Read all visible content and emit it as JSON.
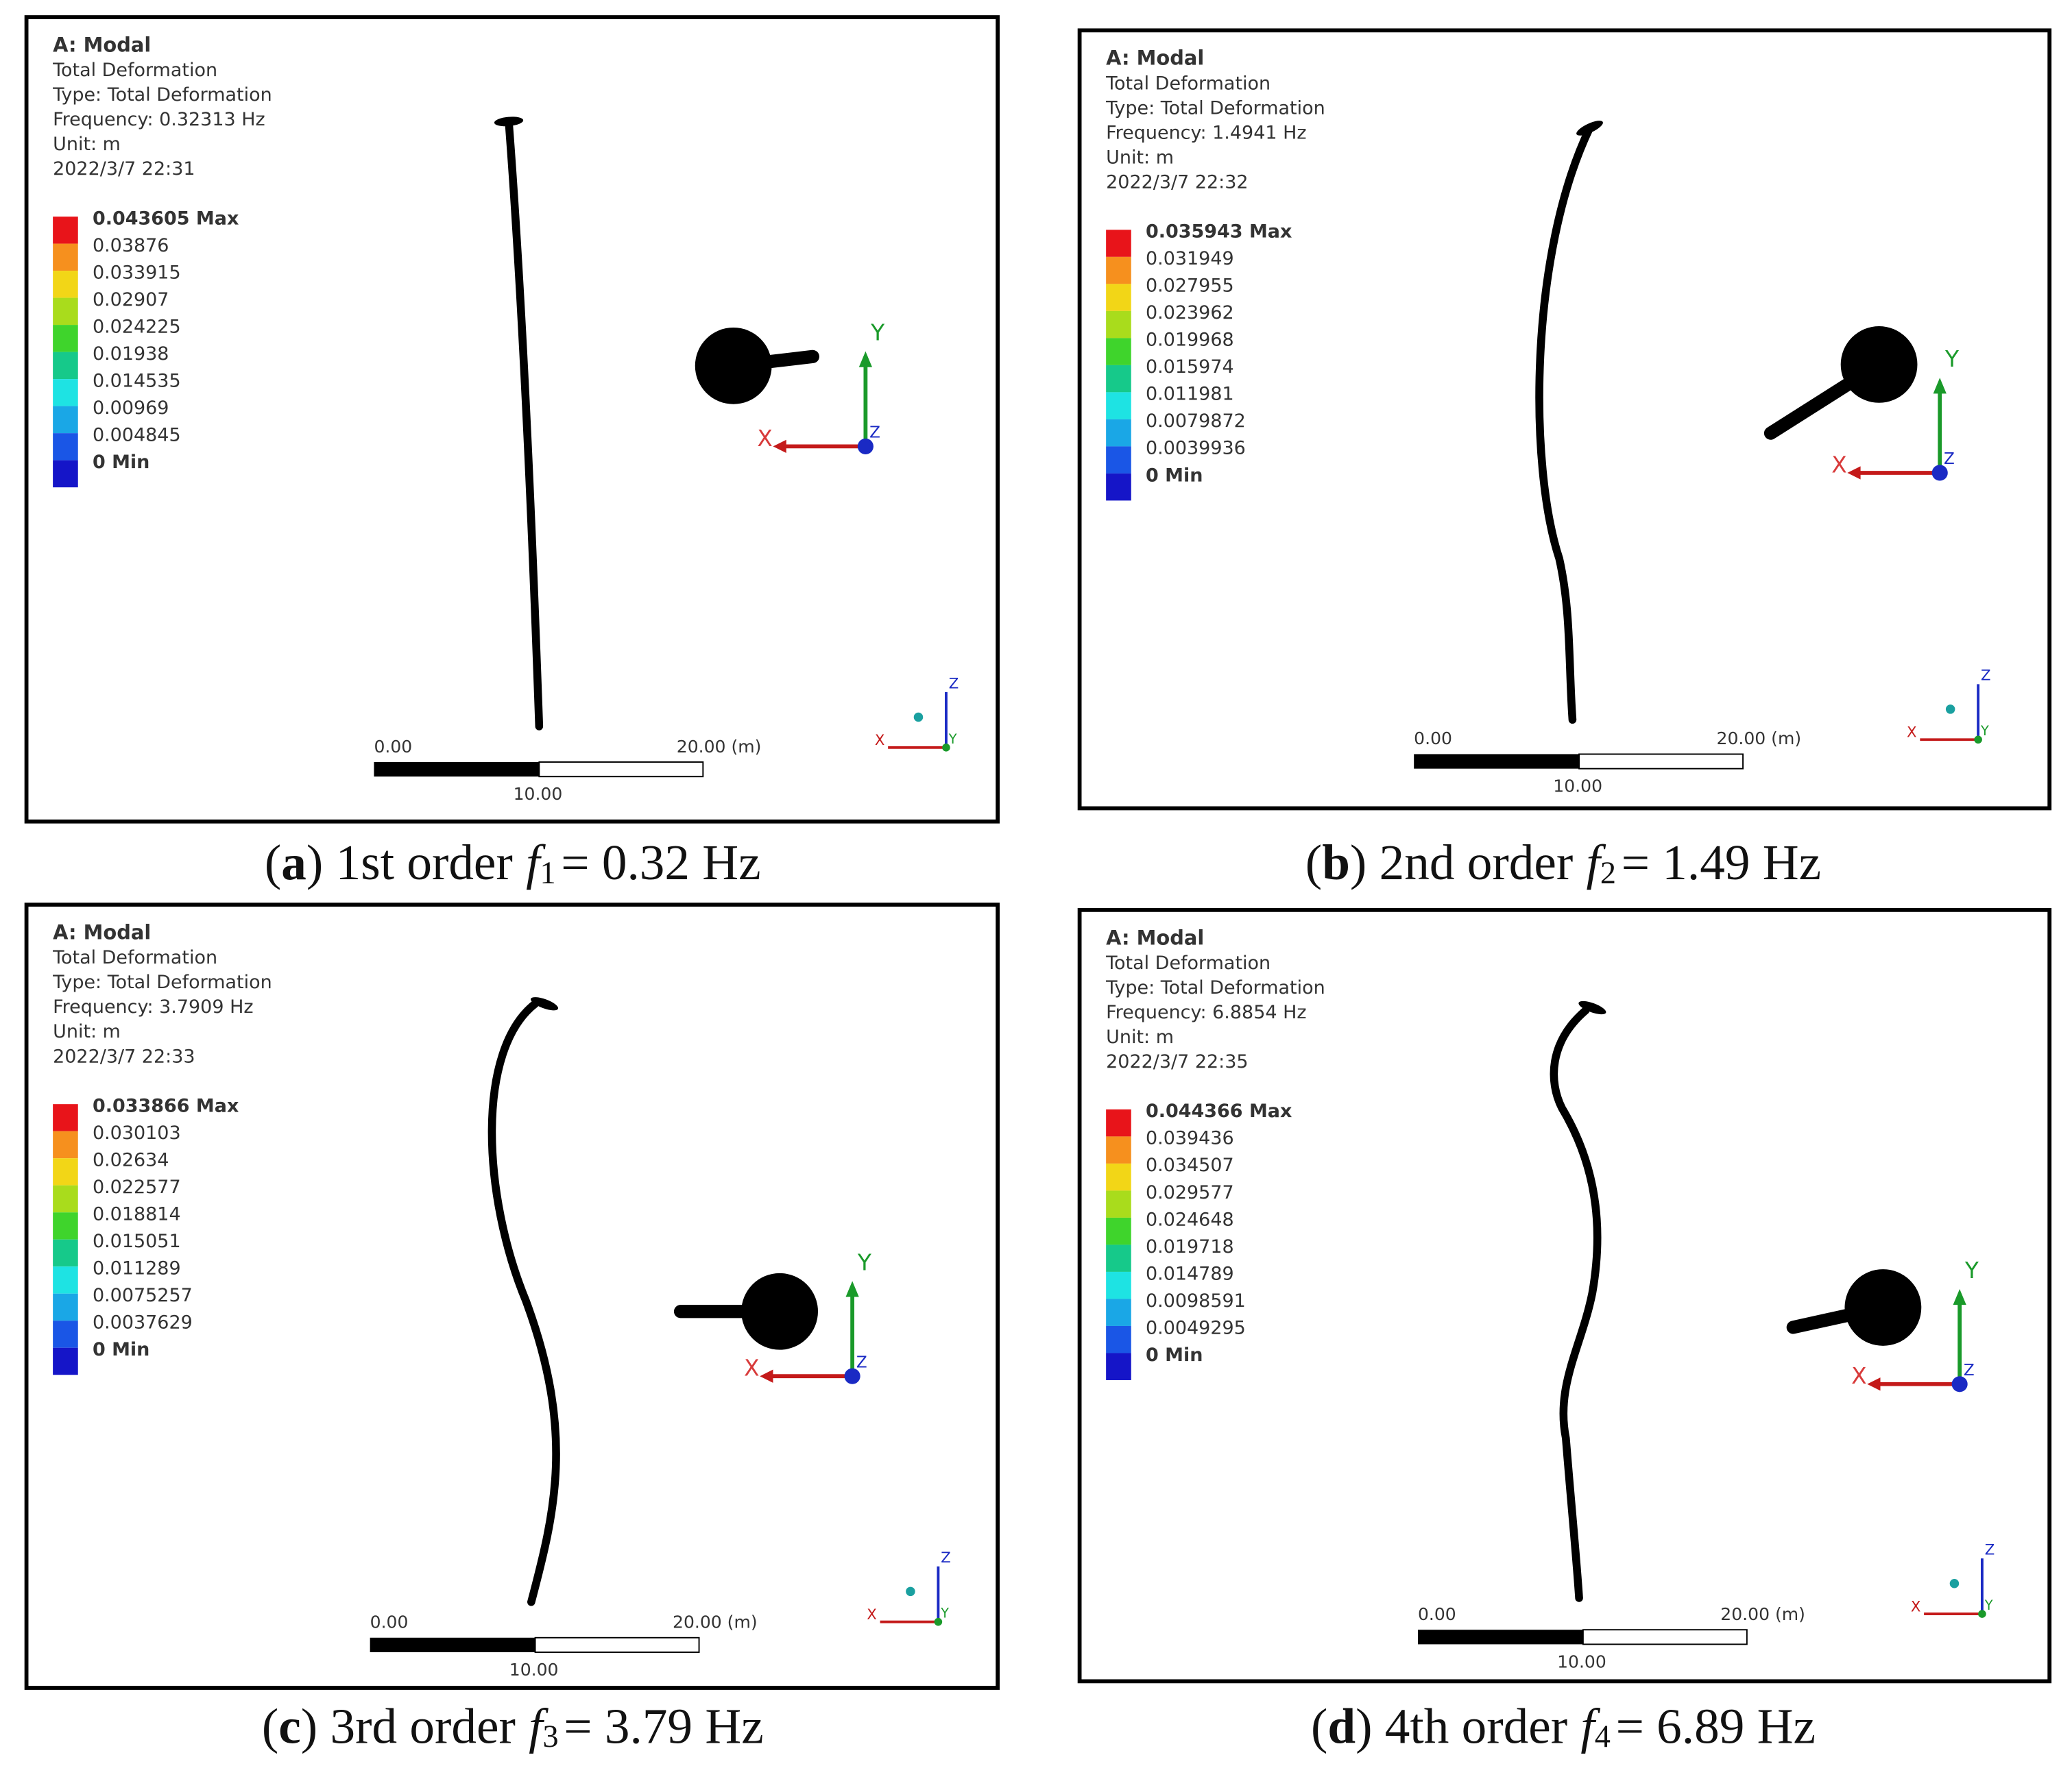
{
  "panels": [
    {
      "header": [
        "A: Modal",
        "Total Deformation",
        "Type: Total Deformation",
        "Frequency: 0.32313 Hz",
        "Unit: m",
        "2022/3/7 22:31"
      ],
      "legend": [
        "0.043605 Max",
        "0.03876",
        "0.033915",
        "0.02907",
        "0.024225",
        "0.01938",
        "0.014535",
        "0.00969",
        "0.004845",
        "0 Min"
      ],
      "scale": {
        "left": "0.00",
        "right": "20.00 (m)",
        "middle": "10.00"
      },
      "triad": {
        "y": "Y",
        "x": "X",
        "z": "Z"
      },
      "mini_triad": {
        "z": "Z",
        "x": "X",
        "y": "Y"
      },
      "caption": {
        "open": "(",
        "letter": "a",
        "text": ") 1st order",
        "symbol": "f",
        "subscript": "1",
        "value": "= 0.32 Hz"
      }
    },
    {
      "header": [
        "A: Modal",
        "Total Deformation",
        "Type: Total Deformation",
        "Frequency: 1.4941 Hz",
        "Unit: m",
        "2022/3/7 22:32"
      ],
      "legend": [
        "0.035943 Max",
        "0.031949",
        "0.027955",
        "0.023962",
        "0.019968",
        "0.015974",
        "0.011981",
        "0.0079872",
        "0.0039936",
        "0 Min"
      ],
      "scale": {
        "left": "0.00",
        "right": "20.00 (m)",
        "middle": "10.00"
      },
      "triad": {
        "y": "Y",
        "x": "X",
        "z": "Z"
      },
      "mini_triad": {
        "z": "Z",
        "x": "X",
        "y": "Y"
      },
      "caption": {
        "open": "(",
        "letter": "b",
        "text": ") 2nd order",
        "symbol": "f",
        "subscript": "2",
        "value": "= 1.49 Hz"
      }
    },
    {
      "header": [
        "A: Modal",
        "Total Deformation",
        "Type: Total Deformation",
        "Frequency: 3.7909 Hz",
        "Unit: m",
        "2022/3/7 22:33"
      ],
      "legend": [
        "0.033866 Max",
        "0.030103",
        "0.02634",
        "0.022577",
        "0.018814",
        "0.015051",
        "0.011289",
        "0.0075257",
        "0.0037629",
        "0 Min"
      ],
      "scale": {
        "left": "0.00",
        "right": "20.00 (m)",
        "middle": "10.00"
      },
      "triad": {
        "y": "Y",
        "x": "X",
        "z": "Z"
      },
      "mini_triad": {
        "z": "Z",
        "x": "X",
        "y": "Y"
      },
      "caption": {
        "open": "(",
        "letter": "c",
        "text": ") 3rd order",
        "symbol": "f",
        "subscript": "3",
        "value": "= 3.79 Hz"
      }
    },
    {
      "header": [
        "A: Modal",
        "Total Deformation",
        "Type: Total Deformation",
        "Frequency: 6.8854 Hz",
        "Unit: m",
        "2022/3/7 22:35"
      ],
      "legend": [
        "0.044366 Max",
        "0.039436",
        "0.034507",
        "0.029577",
        "0.024648",
        "0.019718",
        "0.014789",
        "0.0098591",
        "0.0049295",
        "0 Min"
      ],
      "scale": {
        "left": "0.00",
        "right": "20.00 (m)",
        "middle": "10.00"
      },
      "triad": {
        "y": "Y",
        "x": "X",
        "z": "Z"
      },
      "mini_triad": {
        "z": "Z",
        "x": "X",
        "y": "Y"
      },
      "caption": {
        "open": "(",
        "letter": "d",
        "text": ") 4th order",
        "symbol": "f",
        "subscript": "4",
        "value": "= 6.89 Hz"
      }
    }
  ]
}
